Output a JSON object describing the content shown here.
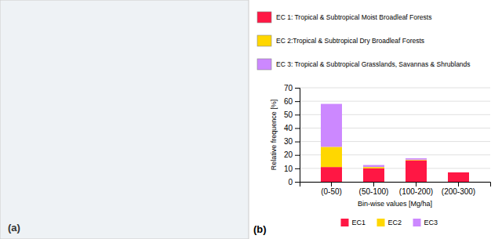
{
  "chart_data": {
    "type": "bar",
    "stacked": true,
    "categories": [
      "(0-50)",
      "(50-100)",
      "(100-200)",
      "(200-300)"
    ],
    "series": [
      {
        "name": "EC1",
        "description": "EC 1: Tropical & Subtropical Moist Broadleaf Forests",
        "color": "#FF1744",
        "values": [
          11.0,
          10.0,
          16.0,
          7.0
        ]
      },
      {
        "name": "EC2",
        "description": "EC 2:Tropical & Subtropical Dry Broadleaf Forests",
        "color": "#FFD700",
        "values": [
          15.0,
          1.0,
          0.5,
          0.0
        ]
      },
      {
        "name": "EC3",
        "description": "EC 3: Tropical & Subtropical Grasslands, Savannas & Shrublands",
        "color": "#CC88FF",
        "values": [
          32.0,
          1.5,
          1.0,
          0.0
        ]
      }
    ],
    "xlabel": "Bin-wise values [Mg/ha]",
    "ylabel": "Relative frequence [%]",
    "ylim": [
      0,
      70
    ],
    "yticks": [
      0,
      10,
      20,
      30,
      40,
      50,
      60,
      70
    ],
    "grid": true,
    "legend": "bottom",
    "annotations": [
      "(a)",
      "(b)"
    ]
  }
}
